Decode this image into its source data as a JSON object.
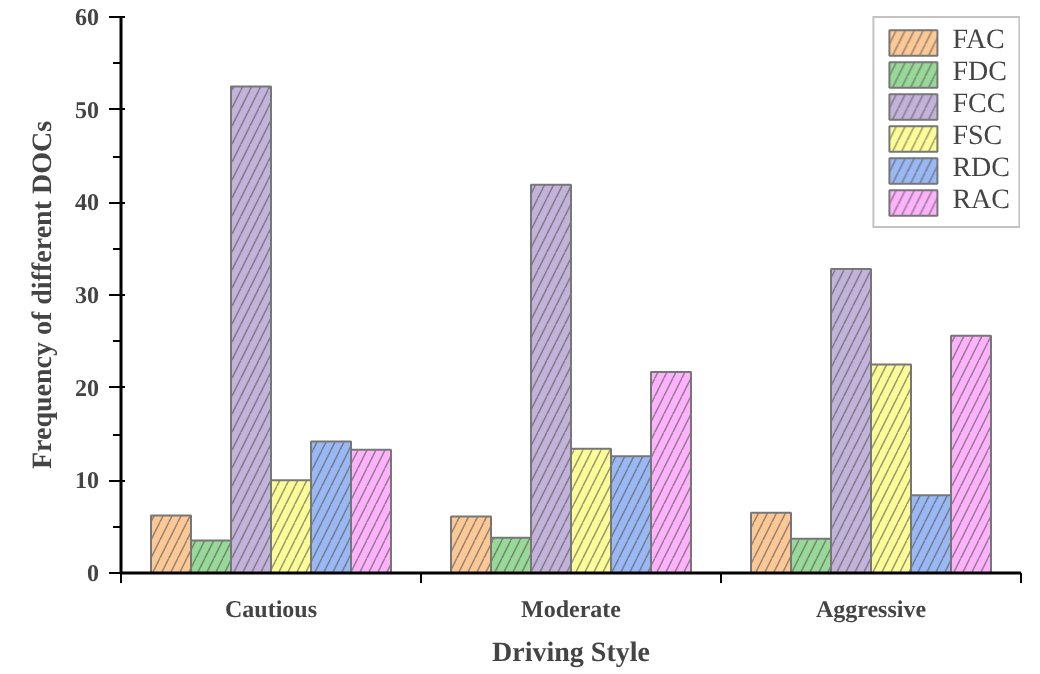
{
  "chart_data": {
    "type": "bar",
    "xlabel": "Driving Style",
    "ylabel": "Frequency of different DOCs",
    "categories": [
      "Cautious",
      "Moderate",
      "Aggressive"
    ],
    "series": [
      {
        "name": "FAC",
        "color": "#fcc896",
        "values": [
          6.2,
          6.1,
          6.5
        ]
      },
      {
        "name": "FDC",
        "color": "#98d898",
        "values": [
          3.5,
          3.8,
          3.7
        ]
      },
      {
        "name": "FCC",
        "color": "#c3b2d9",
        "values": [
          52.5,
          41.9,
          32.8
        ]
      },
      {
        "name": "FSC",
        "color": "#fdfd98",
        "values": [
          10,
          13.4,
          22.5
        ]
      },
      {
        "name": "RDC",
        "color": "#9ab8f3",
        "values": [
          14.2,
          12.6,
          8.4
        ]
      },
      {
        "name": "RAC",
        "color": "#fdb2fb",
        "values": [
          13.3,
          21.7,
          25.6
        ]
      }
    ],
    "ylim": [
      0,
      60
    ],
    "yticks": [
      0,
      10,
      20,
      30,
      40,
      50,
      60
    ],
    "grid": false,
    "legend": "top right"
  }
}
